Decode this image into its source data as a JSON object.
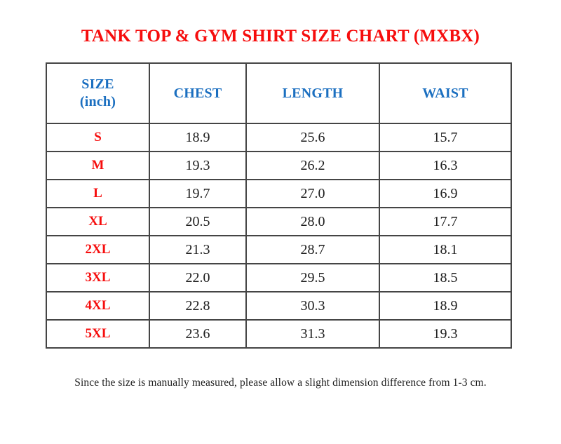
{
  "page": {
    "title": "TANK TOP & GYM SHIRT SIZE CHART (MXBX)",
    "footer_note": "Since the size is manually measured, please allow a slight dimension difference from 1-3 cm."
  },
  "colors": {
    "title_red": "#f60d0d",
    "header_blue": "#1b6fc0",
    "size_label_red": "#f60d0d",
    "value_black": "#1d1d1d",
    "table_border": "#454545",
    "background": "#ffffff"
  },
  "table": {
    "headers": [
      "SIZE\n(inch)",
      "CHEST",
      "LENGTH",
      "WAIST"
    ],
    "rows": [
      {
        "size": "S",
        "chest": "18.9",
        "length": "25.6",
        "waist": "15.7"
      },
      {
        "size": "M",
        "chest": "19.3",
        "length": "26.2",
        "waist": "16.3"
      },
      {
        "size": "L",
        "chest": "19.7",
        "length": "27.0",
        "waist": "16.9"
      },
      {
        "size": "XL",
        "chest": "20.5",
        "length": "28.0",
        "waist": "17.7"
      },
      {
        "size": "2XL",
        "chest": "21.3",
        "length": "28.7",
        "waist": "18.1"
      },
      {
        "size": "3XL",
        "chest": "22.0",
        "length": "29.5",
        "waist": "18.5"
      },
      {
        "size": "4XL",
        "chest": "22.8",
        "length": "30.3",
        "waist": "18.9"
      },
      {
        "size": "5XL",
        "chest": "23.6",
        "length": "31.3",
        "waist": "19.3"
      }
    ]
  },
  "chart_data": {
    "type": "table",
    "title": "TANK TOP & GYM SHIRT SIZE CHART (MXBX)",
    "columns": [
      "SIZE (inch)",
      "CHEST",
      "LENGTH",
      "WAIST"
    ],
    "rows": [
      [
        "S",
        18.9,
        25.6,
        15.7
      ],
      [
        "M",
        19.3,
        26.2,
        16.3
      ],
      [
        "L",
        19.7,
        27.0,
        16.9
      ],
      [
        "XL",
        20.5,
        28.0,
        17.7
      ],
      [
        "2XL",
        21.3,
        28.7,
        18.1
      ],
      [
        "3XL",
        22.0,
        29.5,
        18.5
      ],
      [
        "4XL",
        22.8,
        30.3,
        18.9
      ],
      [
        "5XL",
        23.6,
        31.3,
        19.3
      ]
    ],
    "note": "Since the size is manually measured, please allow a slight dimension difference from 1-3 cm."
  }
}
